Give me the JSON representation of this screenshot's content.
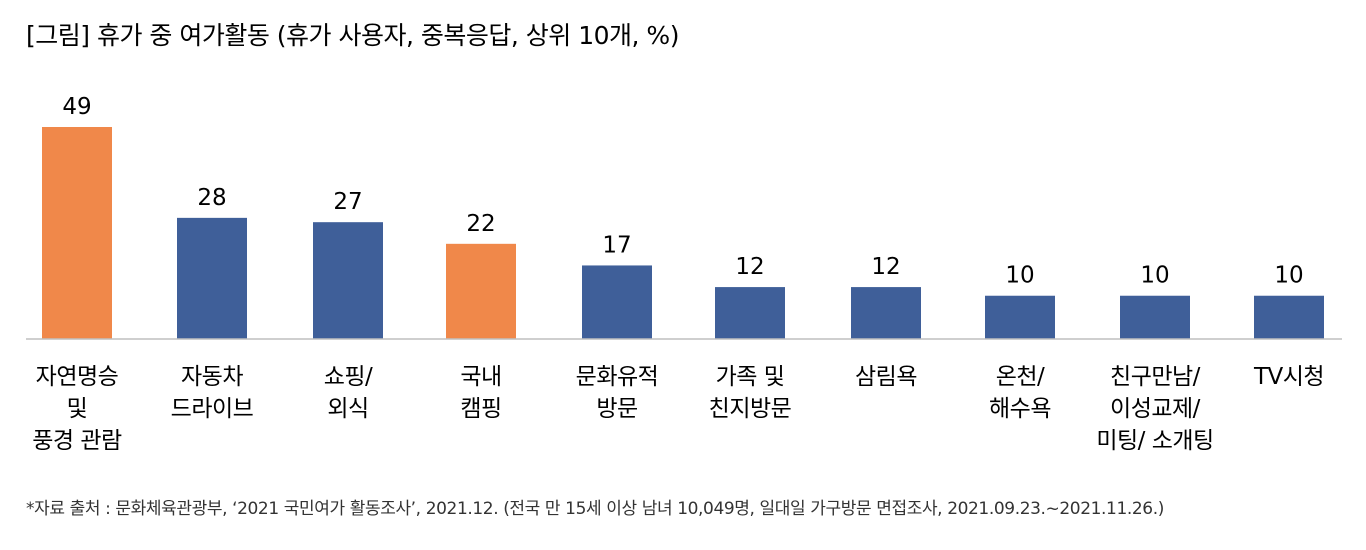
{
  "chart_data": {
    "type": "bar",
    "title": "[그림] 휴가 중 여가활동 (휴가 사용자, 중복응답, 상위 10개, %)",
    "categories": [
      [
        "자연명승",
        "및",
        "풍경 관람"
      ],
      [
        "자동차",
        "드라이브"
      ],
      [
        "쇼핑/",
        "외식"
      ],
      [
        "국내",
        "캠핑"
      ],
      [
        "문화유적",
        "방문"
      ],
      [
        "가족 및",
        "친지방문"
      ],
      [
        "삼림욕"
      ],
      [
        "온천/",
        "해수욕"
      ],
      [
        "친구만남/",
        "이성교제/",
        "미팅/ 소개팅"
      ],
      [
        "TV시청"
      ]
    ],
    "values": [
      49,
      28,
      27,
      22,
      17,
      12,
      12,
      10,
      10,
      10
    ],
    "value_labels": [
      "49",
      "28",
      "27",
      "22",
      "17",
      "12",
      "12",
      "10",
      "10",
      "10"
    ],
    "bar_colors": [
      "#f0884a",
      "#3f5f99",
      "#3f5f99",
      "#f0884a",
      "#3f5f99",
      "#3f5f99",
      "#3f5f99",
      "#3f5f99",
      "#3f5f99",
      "#3f5f99"
    ],
    "label_colors": [
      "#000000",
      "#000000",
      "#000000",
      "#000000",
      "#000000",
      "#000000",
      "#000000",
      "#000000",
      "#1f3864",
      "#1f3864"
    ],
    "ylim": [
      0,
      49
    ],
    "grid": false,
    "legend": "none",
    "axis_color": "#bfbfbf"
  },
  "source_note": "*자료 출처 : 문화체육관광부, ‘2021 국민여가 활동조사’, 2021.12. (전국 만 15세 이상 남녀 10,049명, 일대일 가구방문 면접조사, 2021.09.23.~2021.11.26.)"
}
